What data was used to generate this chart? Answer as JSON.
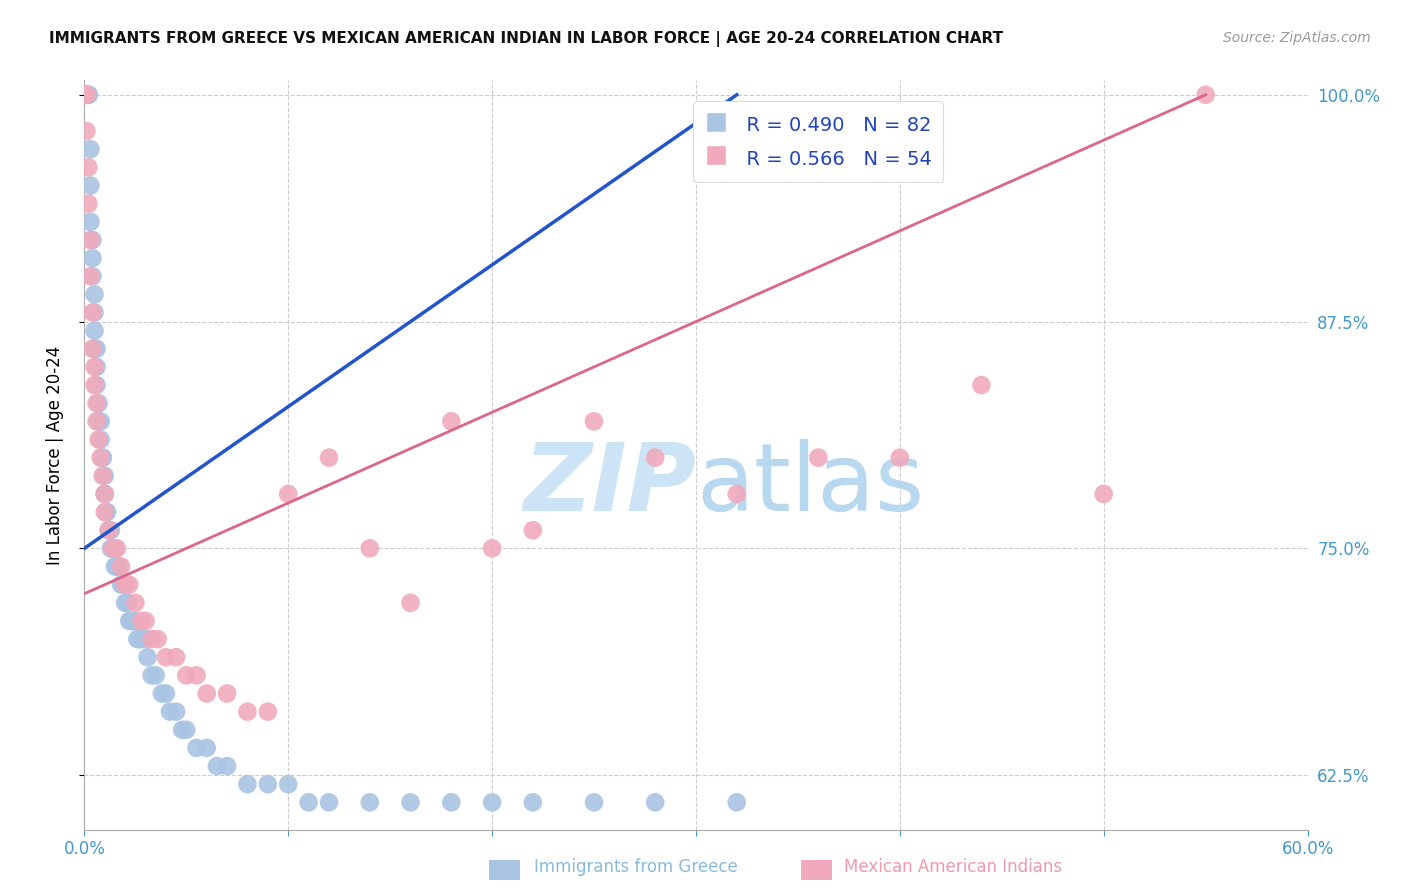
{
  "title": "IMMIGRANTS FROM GREECE VS MEXICAN AMERICAN INDIAN IN LABOR FORCE | AGE 20-24 CORRELATION CHART",
  "source": "Source: ZipAtlas.com",
  "ylabel": "In Labor Force | Age 20-24",
  "xlabel_blue": "Immigrants from Greece",
  "xlabel_pink": "Mexican American Indians",
  "legend_blue_R": "R = 0.490",
  "legend_blue_N": "N = 82",
  "legend_pink_R": "R = 0.566",
  "legend_pink_N": "N = 54",
  "xmin": 0.0,
  "xmax": 0.6,
  "ymin": 0.595,
  "ymax": 1.008,
  "yticks": [
    0.625,
    0.75,
    0.875,
    1.0
  ],
  "ytick_labels": [
    "62.5%",
    "75.0%",
    "87.5%",
    "100.0%"
  ],
  "xticks": [
    0.0,
    0.1,
    0.2,
    0.3,
    0.4,
    0.5,
    0.6
  ],
  "xtick_labels": [
    "0.0%",
    "",
    "",
    "",
    "",
    "",
    "60.0%"
  ],
  "color_blue": "#aac4e4",
  "color_pink": "#f0aabb",
  "line_blue": "#2255cc",
  "line_pink": "#dd6688",
  "watermark_color": "#cce4f5",
  "blue_x": [
    0.0,
    0.0,
    0.0,
    0.0,
    0.0,
    0.001,
    0.001,
    0.002,
    0.002,
    0.002,
    0.003,
    0.003,
    0.003,
    0.004,
    0.004,
    0.004,
    0.005,
    0.005,
    0.005,
    0.005,
    0.006,
    0.006,
    0.006,
    0.007,
    0.007,
    0.008,
    0.008,
    0.009,
    0.009,
    0.01,
    0.01,
    0.01,
    0.011,
    0.011,
    0.012,
    0.012,
    0.013,
    0.013,
    0.014,
    0.015,
    0.015,
    0.016,
    0.017,
    0.018,
    0.019,
    0.02,
    0.02,
    0.021,
    0.022,
    0.023,
    0.024,
    0.025,
    0.026,
    0.027,
    0.028,
    0.03,
    0.031,
    0.033,
    0.035,
    0.038,
    0.04,
    0.042,
    0.045,
    0.048,
    0.05,
    0.055,
    0.06,
    0.065,
    0.07,
    0.08,
    0.09,
    0.1,
    0.11,
    0.12,
    0.14,
    0.16,
    0.18,
    0.2,
    0.22,
    0.25,
    0.28,
    0.32
  ],
  "blue_y": [
    1.0,
    1.0,
    1.0,
    1.0,
    1.0,
    1.0,
    1.0,
    1.0,
    1.0,
    1.0,
    0.97,
    0.95,
    0.93,
    0.92,
    0.91,
    0.9,
    0.89,
    0.88,
    0.87,
    0.86,
    0.86,
    0.85,
    0.84,
    0.83,
    0.82,
    0.82,
    0.81,
    0.8,
    0.8,
    0.79,
    0.78,
    0.78,
    0.77,
    0.77,
    0.76,
    0.76,
    0.76,
    0.75,
    0.75,
    0.75,
    0.74,
    0.74,
    0.74,
    0.73,
    0.73,
    0.73,
    0.72,
    0.72,
    0.71,
    0.71,
    0.71,
    0.71,
    0.7,
    0.7,
    0.7,
    0.7,
    0.69,
    0.68,
    0.68,
    0.67,
    0.67,
    0.66,
    0.66,
    0.65,
    0.65,
    0.64,
    0.64,
    0.63,
    0.63,
    0.62,
    0.62,
    0.62,
    0.61,
    0.61,
    0.61,
    0.61,
    0.61,
    0.61,
    0.61,
    0.61,
    0.61,
    0.61
  ],
  "pink_x": [
    0.0,
    0.0,
    0.0,
    0.001,
    0.001,
    0.002,
    0.002,
    0.003,
    0.003,
    0.004,
    0.004,
    0.005,
    0.005,
    0.006,
    0.006,
    0.007,
    0.008,
    0.009,
    0.01,
    0.01,
    0.012,
    0.014,
    0.016,
    0.018,
    0.02,
    0.022,
    0.025,
    0.028,
    0.03,
    0.033,
    0.036,
    0.04,
    0.045,
    0.05,
    0.055,
    0.06,
    0.07,
    0.08,
    0.09,
    0.1,
    0.12,
    0.14,
    0.16,
    0.18,
    0.2,
    0.22,
    0.25,
    0.28,
    0.32,
    0.36,
    0.4,
    0.44,
    0.5,
    0.55
  ],
  "pink_y": [
    1.0,
    1.0,
    1.0,
    1.0,
    0.98,
    0.96,
    0.94,
    0.92,
    0.9,
    0.88,
    0.86,
    0.85,
    0.84,
    0.83,
    0.82,
    0.81,
    0.8,
    0.79,
    0.78,
    0.77,
    0.76,
    0.75,
    0.75,
    0.74,
    0.73,
    0.73,
    0.72,
    0.71,
    0.71,
    0.7,
    0.7,
    0.69,
    0.69,
    0.68,
    0.68,
    0.67,
    0.67,
    0.66,
    0.66,
    0.78,
    0.8,
    0.75,
    0.72,
    0.82,
    0.75,
    0.76,
    0.82,
    0.8,
    0.78,
    0.8,
    0.8,
    0.84,
    0.78,
    1.0
  ],
  "blue_line_x0": 0.0,
  "blue_line_x1": 0.32,
  "blue_line_y0": 0.75,
  "blue_line_y1": 1.0,
  "pink_line_x0": 0.0,
  "pink_line_x1": 0.55,
  "pink_line_y0": 0.725,
  "pink_line_y1": 1.0
}
